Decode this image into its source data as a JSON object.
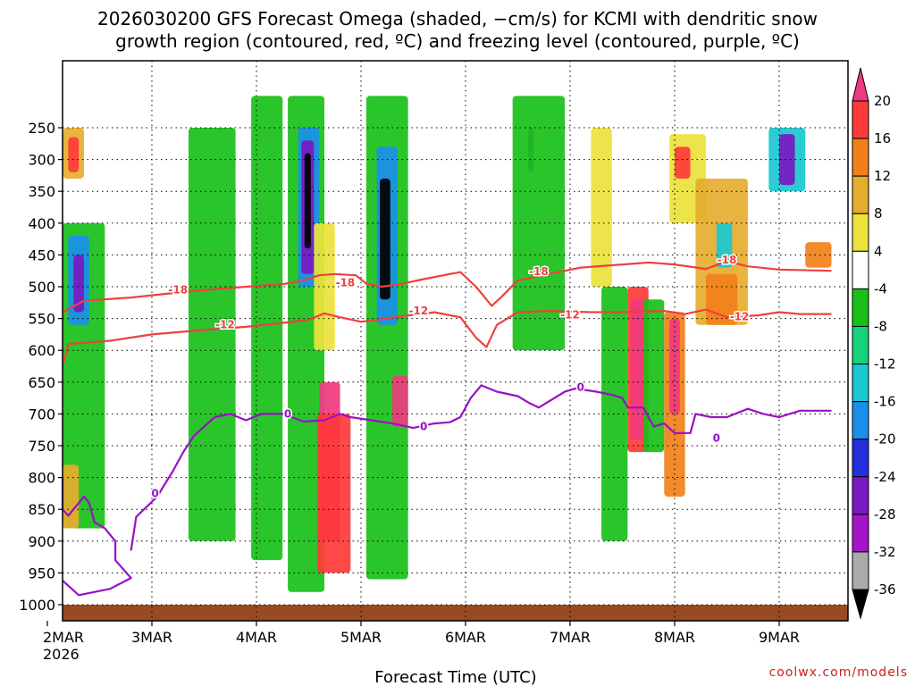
{
  "chart_data": {
    "type": "heatmap",
    "title_lines": [
      "2026030200 GFS Forecast Omega (shaded, −cm/s) for KCMI with dendritic snow",
      "growth region (contoured, red, ºC) and freezing level (contoured, purple, ºC)"
    ],
    "xlabel": "Forecast Time (UTC)",
    "credit": "coolwx.com/models",
    "x_ticks": [
      "2MAR",
      "3MAR",
      "4MAR",
      "5MAR",
      "6MAR",
      "7MAR",
      "8MAR",
      "9MAR"
    ],
    "x_year": "2026",
    "x_range_days": [
      0,
      7.5
    ],
    "y_ticks": [
      250,
      300,
      350,
      400,
      450,
      500,
      550,
      600,
      650,
      700,
      750,
      800,
      850,
      900,
      950,
      1000
    ],
    "y_range_hpa": [
      200,
      1025
    ],
    "colorbar": {
      "labels": [
        "20",
        "16",
        "12",
        "8",
        "4",
        "-4",
        "-8",
        "-12",
        "-16",
        "-20",
        "-24",
        "-28",
        "-32",
        "-36"
      ],
      "colors": [
        "#f03a7e",
        "#ff3a3a",
        "#f2801a",
        "#e6ac2e",
        "#ece23c",
        "#ffffff",
        "#18c018",
        "#16d27a",
        "#19c8d0",
        "#1a8fea",
        "#2430dd",
        "#7a18c2",
        "#a414c8",
        "#aaaaaa",
        "#000000"
      ]
    },
    "contours": {
      "dgz_upper": {
        "label": "-18",
        "color": "#ee4040",
        "points": [
          [
            0,
            540
          ],
          [
            0.35,
            522
          ],
          [
            0.8,
            517
          ],
          [
            1.2,
            510
          ],
          [
            1.5,
            505
          ],
          [
            1.9,
            500
          ],
          [
            2.25,
            496
          ],
          [
            2.45,
            490
          ],
          [
            2.6,
            482
          ],
          [
            2.75,
            480
          ],
          [
            2.95,
            482
          ],
          [
            3.05,
            495
          ],
          [
            3.2,
            500
          ],
          [
            3.4,
            495
          ],
          [
            3.6,
            488
          ],
          [
            3.85,
            480
          ],
          [
            3.95,
            477
          ],
          [
            4.1,
            500
          ],
          [
            4.25,
            530
          ],
          [
            4.35,
            515
          ],
          [
            4.5,
            490
          ],
          [
            4.8,
            480
          ],
          [
            5.1,
            470
          ],
          [
            5.5,
            465
          ],
          [
            5.75,
            462
          ],
          [
            6.0,
            465
          ],
          [
            6.3,
            472
          ],
          [
            6.5,
            460
          ],
          [
            6.7,
            468
          ],
          [
            7.0,
            473
          ],
          [
            7.5,
            475
          ]
        ],
        "label_at": [
          [
            1.25,
            505
          ],
          [
            2.85,
            494
          ],
          [
            4.7,
            476
          ],
          [
            6.5,
            458
          ]
        ]
      },
      "dgz_lower": {
        "label": "-12",
        "color": "#ee4040",
        "points": [
          [
            0,
            625
          ],
          [
            0.2,
            590
          ],
          [
            0.6,
            585
          ],
          [
            1.0,
            575
          ],
          [
            1.5,
            568
          ],
          [
            1.9,
            563
          ],
          [
            2.3,
            556
          ],
          [
            2.5,
            552
          ],
          [
            2.65,
            542
          ],
          [
            2.8,
            548
          ],
          [
            3.0,
            555
          ],
          [
            3.25,
            550
          ],
          [
            3.45,
            545
          ],
          [
            3.6,
            543
          ],
          [
            3.7,
            540
          ],
          [
            3.95,
            548
          ],
          [
            4.1,
            580
          ],
          [
            4.2,
            595
          ],
          [
            4.3,
            560
          ],
          [
            4.5,
            540
          ],
          [
            4.8,
            538
          ],
          [
            5.2,
            540
          ],
          [
            5.5,
            540
          ],
          [
            5.9,
            538
          ],
          [
            6.1,
            543
          ],
          [
            6.3,
            536
          ],
          [
            6.5,
            548
          ],
          [
            6.8,
            545
          ],
          [
            7.0,
            540
          ],
          [
            7.2,
            543
          ],
          [
            7.5,
            543
          ]
        ],
        "label_at": [
          [
            1.7,
            560
          ],
          [
            3.55,
            538
          ],
          [
            5.0,
            544
          ],
          [
            6.62,
            547
          ]
        ]
      },
      "freezing": {
        "label": "0",
        "color": "#9a10c6",
        "points": [
          [
            0.8,
            915
          ],
          [
            0.85,
            862
          ],
          [
            1.05,
            830
          ],
          [
            1.2,
            790
          ],
          [
            1.3,
            760
          ],
          [
            1.4,
            735
          ],
          [
            1.5,
            720
          ],
          [
            1.6,
            705
          ],
          [
            1.75,
            700
          ],
          [
            1.9,
            710
          ],
          [
            2.05,
            700
          ],
          [
            2.25,
            700
          ],
          [
            2.45,
            712
          ],
          [
            2.65,
            710
          ],
          [
            2.8,
            700
          ],
          [
            2.9,
            705
          ],
          [
            3.1,
            710
          ],
          [
            3.3,
            715
          ],
          [
            3.5,
            722
          ],
          [
            3.7,
            715
          ],
          [
            3.85,
            713
          ],
          [
            3.95,
            705
          ],
          [
            4.05,
            675
          ],
          [
            4.15,
            655
          ],
          [
            4.3,
            665
          ],
          [
            4.5,
            672
          ],
          [
            4.6,
            682
          ],
          [
            4.7,
            690
          ],
          [
            4.8,
            680
          ],
          [
            4.95,
            665
          ],
          [
            5.05,
            660
          ],
          [
            5.25,
            665
          ],
          [
            5.4,
            670
          ],
          [
            5.5,
            675
          ],
          [
            5.55,
            690
          ],
          [
            5.7,
            690
          ],
          [
            5.8,
            720
          ],
          [
            5.9,
            715
          ],
          [
            6.0,
            730
          ],
          [
            6.15,
            730
          ],
          [
            6.2,
            700
          ],
          [
            6.35,
            705
          ],
          [
            6.5,
            705
          ],
          [
            6.7,
            692
          ],
          [
            6.85,
            700
          ],
          [
            7.0,
            705
          ],
          [
            7.2,
            695
          ],
          [
            7.5,
            695
          ]
        ],
        "label_at": [
          [
            1.03,
            825
          ],
          [
            2.3,
            700
          ],
          [
            3.6,
            720
          ],
          [
            5.1,
            658
          ],
          [
            6.4,
            738
          ]
        ]
      },
      "freezing_low": {
        "color": "#9a10c6",
        "points": [
          [
            0,
            962
          ],
          [
            0.3,
            985
          ],
          [
            0.6,
            975
          ],
          [
            0.8,
            958
          ],
          [
            0.65,
            930
          ],
          [
            0.65,
            900
          ],
          [
            0.55,
            880
          ],
          [
            0.45,
            870
          ],
          [
            0.4,
            840
          ],
          [
            0.35,
            830
          ],
          [
            0.2,
            860
          ],
          [
            0.12,
            850
          ],
          [
            0.05,
            830
          ],
          [
            0,
            800
          ]
        ]
      }
    },
    "shaded_regions": [
      {
        "t0": 0.15,
        "t1": 0.35,
        "p0": 250,
        "p1": 330,
        "color": "#e6ac2e"
      },
      {
        "t0": 0.2,
        "t1": 0.3,
        "p0": 265,
        "p1": 320,
        "color": "#ff3a3a"
      },
      {
        "t0": 0.1,
        "t1": 0.55,
        "p0": 400,
        "p1": 880,
        "color": "#18c018"
      },
      {
        "t0": 0.2,
        "t1": 0.4,
        "p0": 420,
        "p1": 560,
        "color": "#1a8fea"
      },
      {
        "t0": 0.25,
        "t1": 0.35,
        "p0": 450,
        "p1": 540,
        "color": "#7a18c2"
      },
      {
        "t0": 0.1,
        "t1": 0.3,
        "p0": 780,
        "p1": 880,
        "color": "#e6ac2e"
      },
      {
        "t0": 1.35,
        "t1": 1.8,
        "p0": 250,
        "p1": 900,
        "color": "#18c018"
      },
      {
        "t0": 1.95,
        "t1": 2.25,
        "p0": 200,
        "p1": 930,
        "color": "#18c018"
      },
      {
        "t0": 2.3,
        "t1": 2.65,
        "p0": 200,
        "p1": 980,
        "color": "#18c018"
      },
      {
        "t0": 2.4,
        "t1": 2.6,
        "p0": 250,
        "p1": 500,
        "color": "#1a8fea"
      },
      {
        "t0": 2.43,
        "t1": 2.55,
        "p0": 270,
        "p1": 480,
        "color": "#7a18c2"
      },
      {
        "t0": 2.46,
        "t1": 2.52,
        "p0": 290,
        "p1": 440,
        "color": "#000000"
      },
      {
        "t0": 2.55,
        "t1": 2.75,
        "p0": 400,
        "p1": 600,
        "color": "#ece23c"
      },
      {
        "t0": 2.6,
        "t1": 2.8,
        "p0": 650,
        "p1": 900,
        "color": "#f03a7e"
      },
      {
        "t0": 2.58,
        "t1": 2.9,
        "p0": 700,
        "p1": 950,
        "color": "#ff3a3a"
      },
      {
        "t0": 3.05,
        "t1": 3.45,
        "p0": 200,
        "p1": 960,
        "color": "#18c018"
      },
      {
        "t0": 3.15,
        "t1": 3.35,
        "p0": 280,
        "p1": 560,
        "color": "#1a8fea"
      },
      {
        "t0": 3.18,
        "t1": 3.28,
        "p0": 330,
        "p1": 520,
        "color": "#000000"
      },
      {
        "t0": 3.3,
        "t1": 3.45,
        "p0": 640,
        "p1": 720,
        "color": "#f03a7e"
      },
      {
        "t0": 4.6,
        "t1": 4.65,
        "p0": 250,
        "p1": 320,
        "color": "#7a18c2"
      },
      {
        "t0": 4.45,
        "t1": 4.95,
        "p0": 200,
        "p1": 600,
        "color": "#18c018"
      },
      {
        "t0": 5.2,
        "t1": 5.4,
        "p0": 250,
        "p1": 500,
        "color": "#ece23c"
      },
      {
        "t0": 5.3,
        "t1": 5.55,
        "p0": 500,
        "p1": 900,
        "color": "#18c018"
      },
      {
        "t0": 5.55,
        "t1": 5.75,
        "p0": 500,
        "p1": 760,
        "color": "#ff3a3a"
      },
      {
        "t0": 5.58,
        "t1": 5.7,
        "p0": 520,
        "p1": 740,
        "color": "#f03a7e"
      },
      {
        "t0": 5.7,
        "t1": 5.9,
        "p0": 520,
        "p1": 760,
        "color": "#18c018"
      },
      {
        "t0": 5.9,
        "t1": 6.1,
        "p0": 540,
        "p1": 830,
        "color": "#f2801a"
      },
      {
        "t0": 5.95,
        "t1": 6.05,
        "p0": 550,
        "p1": 700,
        "color": "#f03a7e"
      },
      {
        "t0": 5.95,
        "t1": 6.3,
        "p0": 260,
        "p1": 400,
        "color": "#ece23c"
      },
      {
        "t0": 6.0,
        "t1": 6.15,
        "p0": 280,
        "p1": 330,
        "color": "#ff3a3a"
      },
      {
        "t0": 6.2,
        "t1": 6.7,
        "p0": 330,
        "p1": 560,
        "color": "#e6ac2e"
      },
      {
        "t0": 6.3,
        "t1": 6.6,
        "p0": 480,
        "p1": 560,
        "color": "#f2801a"
      },
      {
        "t0": 6.4,
        "t1": 6.55,
        "p0": 400,
        "p1": 470,
        "color": "#19c8d0"
      },
      {
        "t0": 6.9,
        "t1": 7.25,
        "p0": 250,
        "p1": 350,
        "color": "#19c8d0"
      },
      {
        "t0": 7.0,
        "t1": 7.15,
        "p0": 260,
        "p1": 340,
        "color": "#7a18c2"
      },
      {
        "t0": 7.25,
        "t1": 7.5,
        "p0": 430,
        "p1": 470,
        "color": "#f2801a"
      }
    ],
    "ground": {
      "p_top": 1000,
      "color": "#9a4a22"
    }
  }
}
